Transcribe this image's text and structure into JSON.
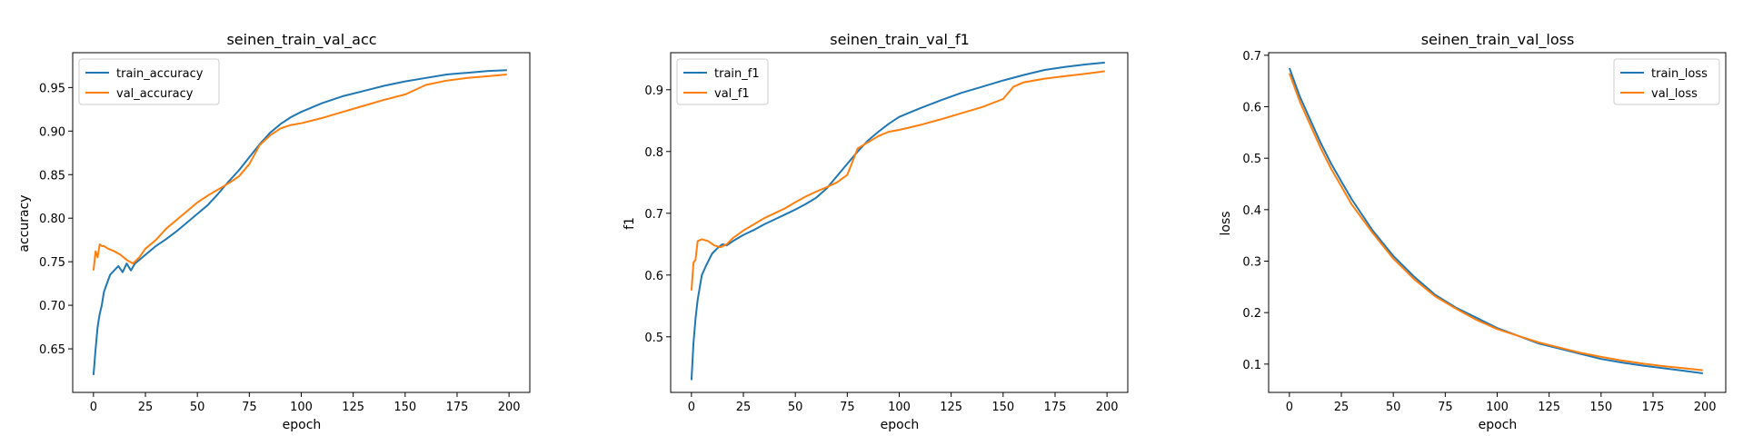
{
  "chart_data": [
    {
      "type": "line",
      "title": "seinen_train_val_acc",
      "xlabel": "epoch",
      "ylabel": "accuracy",
      "xlim": [
        -10,
        210
      ],
      "ylim": [
        0.6,
        0.99
      ],
      "xticks": [
        0,
        25,
        50,
        75,
        100,
        125,
        150,
        175,
        200
      ],
      "yticks": [
        0.65,
        0.7,
        0.75,
        0.8,
        0.85,
        0.9,
        0.95
      ],
      "ytick_labels": [
        "0.65",
        "0.70",
        "0.75",
        "0.80",
        "0.85",
        "0.90",
        "0.95"
      ],
      "legend_loc": "upper left",
      "series": [
        {
          "name": "train_accuracy",
          "color": "#1f77b4",
          "x": [
            0,
            1,
            2,
            3,
            4,
            5,
            6,
            8,
            10,
            12,
            14,
            16,
            18,
            20,
            25,
            30,
            35,
            40,
            45,
            50,
            55,
            60,
            65,
            70,
            75,
            80,
            85,
            90,
            95,
            100,
            110,
            120,
            130,
            140,
            150,
            160,
            170,
            180,
            190,
            199
          ],
          "y": [
            0.62,
            0.65,
            0.675,
            0.69,
            0.7,
            0.715,
            0.722,
            0.735,
            0.74,
            0.745,
            0.738,
            0.748,
            0.74,
            0.748,
            0.758,
            0.768,
            0.776,
            0.785,
            0.795,
            0.805,
            0.815,
            0.828,
            0.842,
            0.855,
            0.87,
            0.885,
            0.898,
            0.908,
            0.916,
            0.922,
            0.932,
            0.94,
            0.946,
            0.952,
            0.957,
            0.961,
            0.965,
            0.967,
            0.969,
            0.97
          ]
        },
        {
          "name": "val_accuracy",
          "color": "#ff7f0e",
          "x": [
            0,
            1,
            2,
            3,
            4,
            5,
            7,
            10,
            13,
            16,
            19,
            22,
            25,
            30,
            35,
            40,
            45,
            50,
            55,
            60,
            65,
            70,
            75,
            80,
            85,
            90,
            95,
            100,
            110,
            120,
            130,
            140,
            150,
            160,
            170,
            180,
            190,
            199
          ],
          "y": [
            0.74,
            0.762,
            0.755,
            0.77,
            0.768,
            0.768,
            0.765,
            0.762,
            0.758,
            0.752,
            0.748,
            0.755,
            0.765,
            0.775,
            0.788,
            0.798,
            0.808,
            0.818,
            0.826,
            0.833,
            0.84,
            0.848,
            0.862,
            0.884,
            0.895,
            0.903,
            0.907,
            0.909,
            0.915,
            0.922,
            0.929,
            0.936,
            0.942,
            0.953,
            0.958,
            0.961,
            0.963,
            0.965
          ]
        }
      ]
    },
    {
      "type": "line",
      "title": "seinen_train_val_f1",
      "xlabel": "epoch",
      "ylabel": "f1",
      "xlim": [
        -10,
        210
      ],
      "ylim": [
        0.41,
        0.96
      ],
      "xticks": [
        0,
        25,
        50,
        75,
        100,
        125,
        150,
        175,
        200
      ],
      "yticks": [
        0.5,
        0.6,
        0.7,
        0.8,
        0.9
      ],
      "ytick_labels": [
        "0.5",
        "0.6",
        "0.7",
        "0.8",
        "0.9"
      ],
      "legend_loc": "upper left",
      "series": [
        {
          "name": "train_f1",
          "color": "#1f77b4",
          "x": [
            0,
            1,
            2,
            3,
            4,
            5,
            7,
            10,
            13,
            15,
            17,
            20,
            25,
            30,
            35,
            40,
            45,
            50,
            55,
            60,
            65,
            70,
            75,
            80,
            85,
            90,
            95,
            100,
            110,
            120,
            130,
            140,
            150,
            160,
            170,
            180,
            190,
            199
          ],
          "y": [
            0.43,
            0.49,
            0.53,
            0.56,
            0.58,
            0.6,
            0.615,
            0.635,
            0.645,
            0.65,
            0.648,
            0.655,
            0.665,
            0.673,
            0.682,
            0.69,
            0.698,
            0.706,
            0.715,
            0.725,
            0.74,
            0.76,
            0.78,
            0.8,
            0.818,
            0.832,
            0.845,
            0.856,
            0.87,
            0.883,
            0.895,
            0.905,
            0.915,
            0.924,
            0.932,
            0.937,
            0.941,
            0.944
          ]
        },
        {
          "name": "val_f1",
          "color": "#ff7f0e",
          "x": [
            0,
            1,
            2,
            3,
            5,
            8,
            11,
            14,
            17,
            20,
            25,
            30,
            35,
            40,
            45,
            50,
            55,
            60,
            65,
            70,
            75,
            80,
            85,
            90,
            95,
            100,
            110,
            120,
            130,
            140,
            150,
            155,
            160,
            170,
            180,
            190,
            199
          ],
          "y": [
            0.575,
            0.62,
            0.625,
            0.655,
            0.658,
            0.655,
            0.648,
            0.645,
            0.65,
            0.66,
            0.672,
            0.682,
            0.692,
            0.7,
            0.708,
            0.718,
            0.727,
            0.735,
            0.742,
            0.75,
            0.762,
            0.805,
            0.815,
            0.825,
            0.832,
            0.835,
            0.843,
            0.852,
            0.862,
            0.872,
            0.885,
            0.905,
            0.912,
            0.918,
            0.922,
            0.926,
            0.93
          ]
        }
      ]
    },
    {
      "type": "line",
      "title": "seinen_train_val_loss",
      "xlabel": "epoch",
      "ylabel": "loss",
      "xlim": [
        -10,
        210
      ],
      "ylim": [
        0.045,
        0.705
      ],
      "xticks": [
        0,
        25,
        50,
        75,
        100,
        125,
        150,
        175,
        200
      ],
      "yticks": [
        0.1,
        0.2,
        0.3,
        0.4,
        0.5,
        0.6,
        0.7
      ],
      "ytick_labels": [
        "0.1",
        "0.2",
        "0.3",
        "0.4",
        "0.5",
        "0.6",
        "0.7"
      ],
      "legend_loc": "upper right",
      "series": [
        {
          "name": "train_loss",
          "color": "#1f77b4",
          "x": [
            0,
            5,
            10,
            15,
            20,
            25,
            30,
            40,
            50,
            60,
            70,
            80,
            90,
            100,
            110,
            120,
            130,
            140,
            150,
            160,
            170,
            180,
            190,
            199
          ],
          "y": [
            0.675,
            0.62,
            0.575,
            0.53,
            0.49,
            0.455,
            0.42,
            0.36,
            0.31,
            0.27,
            0.235,
            0.21,
            0.19,
            0.17,
            0.155,
            0.14,
            0.13,
            0.12,
            0.11,
            0.103,
            0.097,
            0.092,
            0.087,
            0.082
          ]
        },
        {
          "name": "val_loss",
          "color": "#ff7f0e",
          "x": [
            0,
            5,
            10,
            15,
            20,
            25,
            30,
            40,
            50,
            60,
            70,
            80,
            90,
            100,
            110,
            120,
            130,
            140,
            150,
            160,
            170,
            180,
            190,
            199
          ],
          "y": [
            0.665,
            0.61,
            0.565,
            0.52,
            0.48,
            0.445,
            0.41,
            0.355,
            0.305,
            0.265,
            0.232,
            0.208,
            0.186,
            0.168,
            0.155,
            0.142,
            0.132,
            0.122,
            0.114,
            0.107,
            0.101,
            0.096,
            0.092,
            0.088
          ]
        }
      ]
    }
  ]
}
